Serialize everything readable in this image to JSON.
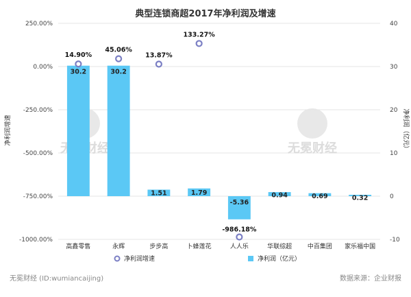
{
  "chart_data": {
    "type": "bar+line",
    "title": "典型连锁商超2017年净利润及增速",
    "categories": [
      "高鑫零售",
      "永辉",
      "步步高",
      "卜蜂莲花",
      "人人乐",
      "华联综超",
      "中百集团",
      "家乐福中国"
    ],
    "series": [
      {
        "name": "净利润（亿元）",
        "type": "bar",
        "axis": "right",
        "values": [
          30.2,
          30.2,
          1.51,
          1.79,
          -5.36,
          0.94,
          0.69,
          0.32
        ],
        "labels": [
          "30.2",
          "30.2",
          "1.51",
          "1.79",
          "-5.36",
          "0.94",
          "0.69",
          "0.32"
        ],
        "color": "#5bc8f5"
      },
      {
        "name": "净利润增速",
        "type": "scatter",
        "axis": "left",
        "values": [
          14.9,
          45.06,
          13.87,
          133.27,
          -986.18,
          null,
          null,
          null
        ],
        "labels": [
          "14.90%",
          "45.06%",
          "13.87%",
          "133.27%",
          "-986.18%",
          "",
          "",
          ""
        ],
        "color": "#7b7fc4"
      }
    ],
    "left_axis": {
      "label": "净利润增速",
      "ylim": [
        -1000,
        250
      ],
      "ticks": [
        250,
        0,
        -250,
        -500,
        -750,
        -1000
      ],
      "tick_labels": [
        "250.00%",
        "0.00%",
        "-250.00%",
        "-500.00%",
        "-750.00%",
        "-1000.00%"
      ]
    },
    "right_axis": {
      "label": "净利润（亿元）",
      "ylim": [
        -10,
        40
      ],
      "ticks": [
        40,
        30,
        20,
        10,
        0,
        -10
      ],
      "tick_labels": [
        "40",
        "30",
        "20",
        "10",
        "0",
        "-10"
      ]
    },
    "grid": true,
    "legend": [
      {
        "name": "净利润增速",
        "marker": "circle",
        "color": "#7b7fc4"
      },
      {
        "name": "净利润（亿元）",
        "marker": "square",
        "color": "#5bc8f5"
      }
    ],
    "legend_position": "bottom"
  },
  "footer": {
    "left": "无冕财经 (ID:wumiancaijing)",
    "right": "数据来源：企业财报"
  },
  "watermark": "无冕财经"
}
